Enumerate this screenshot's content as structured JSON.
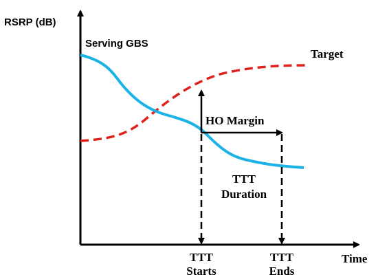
{
  "axes": {
    "y_label": "RSRP (dB)",
    "x_label": "Time"
  },
  "curves": {
    "serving": {
      "label": "Serving GBS",
      "color": "#1bb3e6",
      "style": "solid"
    },
    "target": {
      "label": "Target",
      "color": "#e0201b",
      "style": "dashed"
    }
  },
  "annotations": {
    "ho_margin": "HO Margin",
    "ttt_duration_line1": "TTT",
    "ttt_duration_line2": "Duration",
    "ttt_starts_line1": "TTT",
    "ttt_starts_line2": "Starts",
    "ttt_ends_line1": "TTT",
    "ttt_ends_line2": "Ends"
  }
}
